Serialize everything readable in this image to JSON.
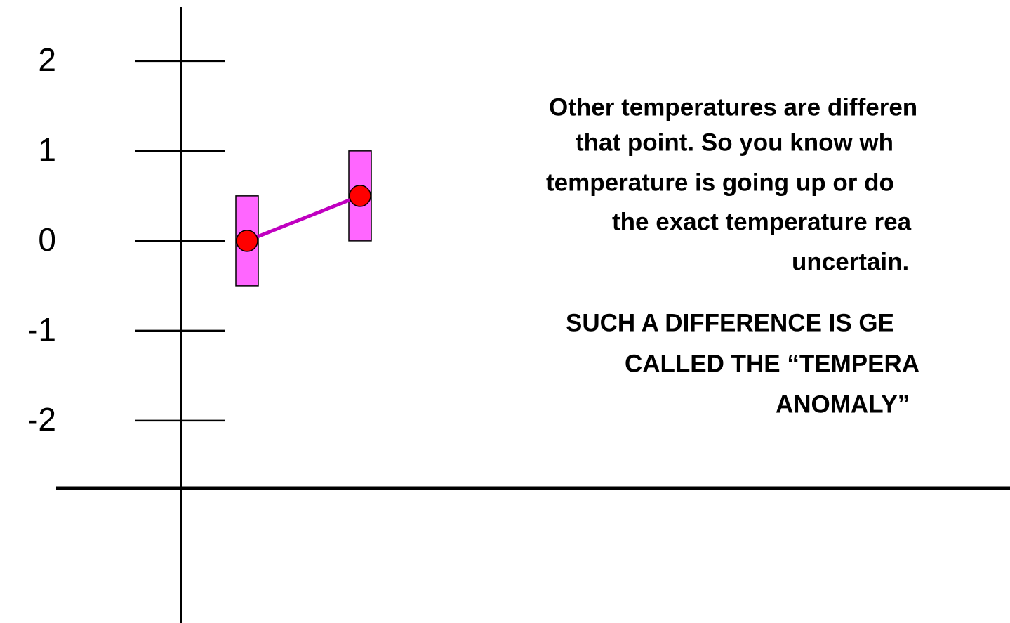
{
  "chart_data": {
    "type": "line",
    "categories": [
      null,
      null
    ],
    "series": [
      {
        "color": "#c000c0",
        "marker_color": "#ff0000",
        "error_color": "#ff66ff",
        "values": [
          0,
          0.5
        ],
        "errors": [
          0.5,
          0.5
        ]
      }
    ],
    "ylim": [
      -4.25,
      2.6
    ],
    "yticks": [
      2,
      1,
      0,
      -1,
      -2
    ],
    "annotations": [
      "Other temperatures are differen",
      "that point.  So you know wh",
      "temperature is going up or do",
      "the exact temperature rea",
      "uncertain.",
      "SUCH A DIFFERENCE IS GE",
      "CALLED THE “TEMPERA",
      "ANOMALY”"
    ]
  }
}
